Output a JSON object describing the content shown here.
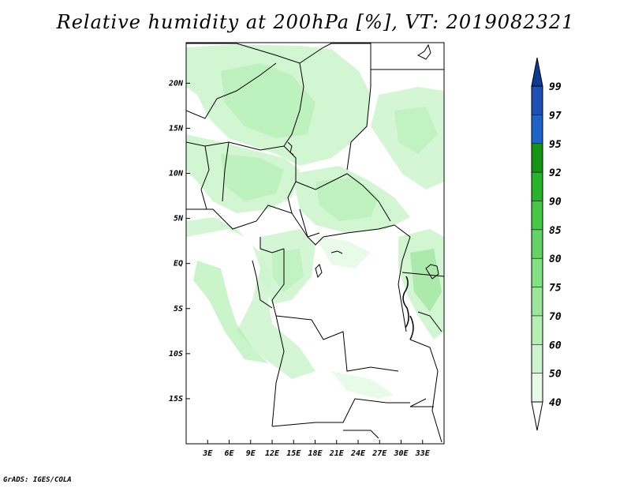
{
  "title": "Relative humidity at 200hPa [%], VT: 2019082321",
  "credit": "GrADS: IGES/COLA",
  "map": {
    "lon_range": [
      0,
      36
    ],
    "lat_range": [
      -20,
      24.5
    ],
    "lon_ticks": [
      "3E",
      "6E",
      "9E",
      "12E",
      "15E",
      "18E",
      "21E",
      "24E",
      "27E",
      "30E",
      "33E"
    ],
    "lat_ticks": [
      "20N",
      "15N",
      "10N",
      "5N",
      "EQ",
      "5S",
      "10S",
      "15S"
    ]
  },
  "colorbar": {
    "levels": [
      "40",
      "50",
      "60",
      "70",
      "75",
      "80",
      "85",
      "90",
      "92",
      "95",
      "97",
      "99"
    ],
    "colors": [
      "#ffffff",
      "#e6fae6",
      "#cdf5cd",
      "#b4f0b4",
      "#9be69b",
      "#82e182",
      "#64d264",
      "#46c846",
      "#28b428",
      "#149614",
      "#1e64c8",
      "#1e50b4",
      "#0a3c96"
    ]
  }
}
